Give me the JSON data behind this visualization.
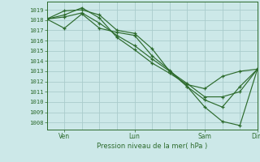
{
  "background_color": "#cce8e8",
  "grid_color": "#aacccc",
  "line_color": "#2d6b2d",
  "title": "Pression niveau de la mer( hPa )",
  "yticks": [
    1008,
    1009,
    1010,
    1011,
    1012,
    1013,
    1014,
    1015,
    1016,
    1017,
    1018,
    1019
  ],
  "ylim": [
    1007.3,
    1019.8
  ],
  "xlim": [
    0,
    72
  ],
  "xtick_positions": [
    6,
    30,
    54,
    72
  ],
  "xtick_labels": [
    "Ven",
    "Lun",
    "Sam",
    "Dim"
  ],
  "vgrid_x": [
    0,
    6,
    12,
    18,
    24,
    30,
    36,
    42,
    48,
    54,
    60,
    66,
    72
  ],
  "series1": {
    "x": [
      0,
      6,
      12,
      18,
      24,
      30,
      36,
      42,
      48,
      54,
      60,
      66,
      72
    ],
    "y": [
      1018.1,
      1018.5,
      1019.2,
      1018.2,
      1016.3,
      1015.1,
      1013.8,
      1012.8,
      1011.7,
      1011.3,
      1012.5,
      1013.0,
      1013.2
    ]
  },
  "series2": {
    "x": [
      0,
      6,
      12,
      18,
      24,
      30,
      36,
      42,
      48,
      54,
      60,
      66,
      72
    ],
    "y": [
      1018.1,
      1018.9,
      1019.0,
      1018.5,
      1017.0,
      1016.7,
      1015.2,
      1013.0,
      1011.8,
      1010.5,
      1010.5,
      1011.0,
      1013.2
    ]
  },
  "series3": {
    "x": [
      0,
      6,
      12,
      18,
      24,
      30,
      36,
      42,
      48,
      54,
      60,
      66,
      72
    ],
    "y": [
      1018.1,
      1018.3,
      1018.7,
      1017.7,
      1016.5,
      1015.5,
      1014.2,
      1013.0,
      1011.5,
      1009.5,
      1008.1,
      1007.7,
      1013.2
    ]
  },
  "series4": {
    "x": [
      0,
      6,
      12,
      18,
      24,
      30,
      36,
      42,
      48,
      54,
      60,
      66,
      72
    ],
    "y": [
      1018.1,
      1017.2,
      1018.6,
      1017.2,
      1016.8,
      1016.5,
      1014.5,
      1013.1,
      1011.5,
      1010.2,
      1009.5,
      1011.5,
      1013.2
    ]
  }
}
